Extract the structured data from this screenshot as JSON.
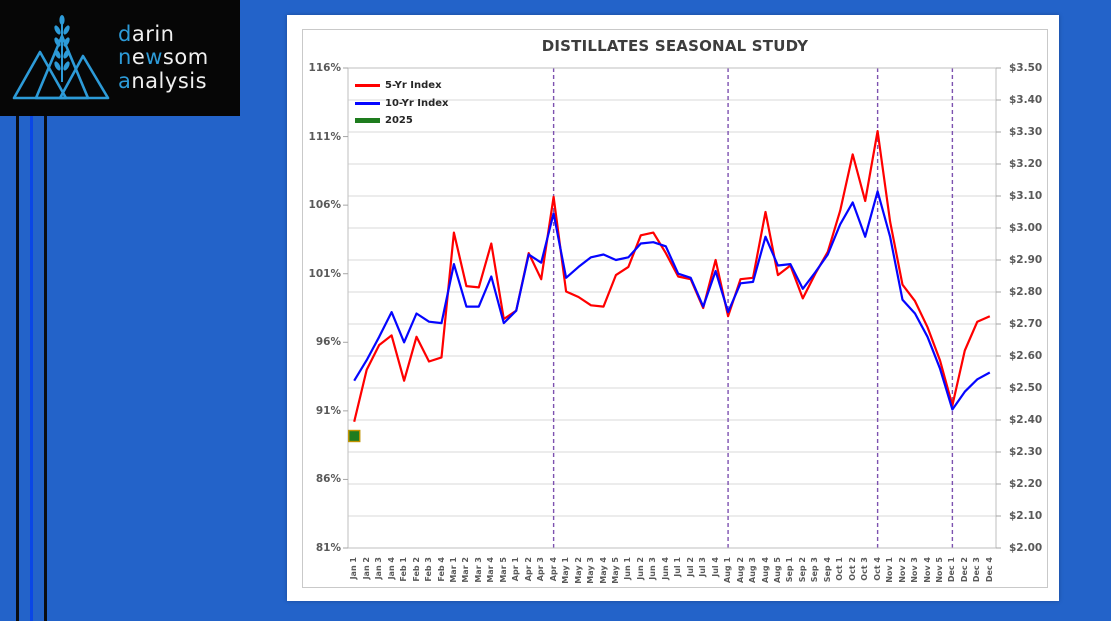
{
  "page": {
    "background": "#2363c9",
    "stripes": [
      {
        "x": 16,
        "w": 3,
        "color": "#0a0d12"
      },
      {
        "x": 30,
        "w": 3,
        "color": "#0a46e6"
      },
      {
        "x": 44,
        "w": 3,
        "color": "#0a0d12"
      }
    ]
  },
  "logo": {
    "background": "#060606",
    "accent_color": "#2d9bd8",
    "text_color": "#f0f0f0",
    "lines": [
      [
        {
          "t": "d",
          "a": 1
        },
        {
          "t": "arin",
          "a": 0
        }
      ],
      [
        {
          "t": "n",
          "a": 1
        },
        {
          "t": "e",
          "a": 0
        },
        {
          "t": "w",
          "a": 1
        },
        {
          "t": "som",
          "a": 0
        }
      ],
      [
        {
          "t": "a",
          "a": 1
        },
        {
          "t": "nalysis",
          "a": 0
        }
      ]
    ]
  },
  "chart_data": {
    "type": "line",
    "title": "DISTILLATES SEASONAL STUDY",
    "categories": [
      "Jan 1",
      "Jan 2",
      "Jan 3",
      "Jan 4",
      "Feb 1",
      "Feb 2",
      "Feb 3",
      "Feb 4",
      "Mar 1",
      "Mar 2",
      "Mar 3",
      "Mar 4",
      "Mar 5",
      "Apr 1",
      "Apr 2",
      "Apr 3",
      "Apr 4",
      "May 1",
      "May 2",
      "May 3",
      "May 4",
      "May 5",
      "Jun 1",
      "Jun 2",
      "Jun 3",
      "Jun 4",
      "Jul 1",
      "Jul 2",
      "Jul 3",
      "Jul 4",
      "Aug 1",
      "Aug 2",
      "Aug 3",
      "Aug 4",
      "Aug 5",
      "Sep 1",
      "Sep 2",
      "Sep 3",
      "Sep 4",
      "Oct 1",
      "Oct 2",
      "Oct 3",
      "Oct 4",
      "Nov 1",
      "Nov 2",
      "Nov 3",
      "Nov 4",
      "Nov 5",
      "Dec 1",
      "Dec 2",
      "Dec 3",
      "Dec 4"
    ],
    "series": [
      {
        "name": "5-Yr Index",
        "color": "#ff0000",
        "width": 2.2,
        "values": [
          90.2,
          94.0,
          95.8,
          96.5,
          93.2,
          96.4,
          94.6,
          94.9,
          104.0,
          100.1,
          100.0,
          103.2,
          97.7,
          98.3,
          102.5,
          100.6,
          106.6,
          99.7,
          99.3,
          98.7,
          98.6,
          100.9,
          101.5,
          103.8,
          104.0,
          102.5,
          100.8,
          100.6,
          98.5,
          102.0,
          97.9,
          100.6,
          100.7,
          105.5,
          100.9,
          101.6,
          99.2,
          101.0,
          102.6,
          105.6,
          109.7,
          106.3,
          111.4,
          104.8,
          100.2,
          99.0,
          97.1,
          94.7,
          91.4,
          95.4,
          97.5,
          97.9
        ]
      },
      {
        "name": "10-Yr Index",
        "color": "#0505ff",
        "width": 2.2,
        "values": [
          93.2,
          94.7,
          96.4,
          98.2,
          96.0,
          98.1,
          97.5,
          97.4,
          101.7,
          98.6,
          98.6,
          100.8,
          97.4,
          98.3,
          102.4,
          101.8,
          105.4,
          100.7,
          101.5,
          102.2,
          102.4,
          102.0,
          102.2,
          103.2,
          103.3,
          103.0,
          101.0,
          100.7,
          98.6,
          101.2,
          98.2,
          100.3,
          100.4,
          103.7,
          101.6,
          101.7,
          99.9,
          101.1,
          102.4,
          104.6,
          106.2,
          103.7,
          107.0,
          103.7,
          99.1,
          98.1,
          96.4,
          94.1,
          91.1,
          92.4,
          93.3,
          93.8
        ]
      },
      {
        "name": "2025",
        "color": "#1e7c1e",
        "marker": "square",
        "marker_border": "#bf9200",
        "axis": "right",
        "points": [
          {
            "category": "Jan 1",
            "usd": 2.35
          }
        ]
      }
    ],
    "left_axis": {
      "unit": "%",
      "min": 81,
      "max": 116,
      "step": 5,
      "labels": [
        "116%",
        "111%",
        "106%",
        "101%",
        "96%",
        "91%",
        "86%",
        "81%"
      ]
    },
    "right_axis": {
      "unit": "$",
      "min": 2.0,
      "max": 3.5,
      "step": 0.1,
      "labels": [
        "$3.50",
        "$3.40",
        "$3.30",
        "$3.20",
        "$3.10",
        "$3.00",
        "$2.90",
        "$2.80",
        "$2.70",
        "$2.60",
        "$2.50",
        "$2.40",
        "$2.30",
        "$2.20",
        "$2.10",
        "$2.00"
      ]
    },
    "vlines": {
      "color": "#7d52b0",
      "at": [
        "Apr 4",
        "Aug 1",
        "Oct 4",
        "Dec 1"
      ]
    },
    "grid": {
      "color": "#d9d9d9",
      "h_intervals": 15,
      "border": "#bfbfbf",
      "tick": "#a6a6a6"
    },
    "legend_position": "top-left-inside"
  }
}
